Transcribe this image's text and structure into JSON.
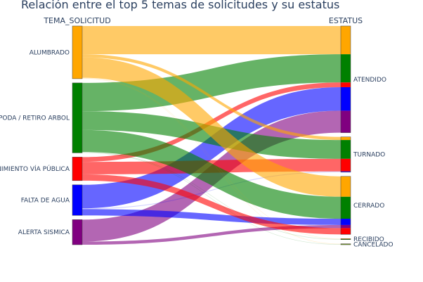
{
  "chart_data": {
    "type": "sankey",
    "title": "Relación entre el top 5 temas de solicitudes y su estatus",
    "left_column_title": "TEMA_SOLICITUD",
    "right_column_title": "ESTATUS",
    "source_nodes": [
      {
        "label": "ALUMBRADO",
        "color": "#ffa600"
      },
      {
        "label": "PODA / RETIRO ARBOL",
        "color": "#008000"
      },
      {
        "label": "MANTENIMIENTO VÍA PÚBLICA",
        "color": "#ff0000"
      },
      {
        "label": "FALTA DE AGUA",
        "color": "#0000ff"
      },
      {
        "label": "ALERTA SISMICA",
        "color": "#800080"
      }
    ],
    "target_nodes": [
      {
        "label": "ATENDIDO"
      },
      {
        "label": "TURNADO"
      },
      {
        "label": "CERRADO"
      },
      {
        "label": "RECIBIDO"
      },
      {
        "label": "CANCELADO"
      }
    ],
    "flows": [
      {
        "source": "ALUMBRADO",
        "target": "ATENDIDO",
        "value": 18
      },
      {
        "source": "PODA / RETIRO ARBOL",
        "target": "ATENDIDO",
        "value": 18
      },
      {
        "source": "MANTENIMIENTO VÍA PÚBLICA",
        "target": "ATENDIDO",
        "value": 3
      },
      {
        "source": "FALTA DE AGUA",
        "target": "ATENDIDO",
        "value": 15
      },
      {
        "source": "ALERTA SISMICA",
        "target": "ATENDIDO",
        "value": 14
      },
      {
        "source": "ALUMBRADO",
        "target": "TURNADO",
        "value": 2
      },
      {
        "source": "PODA / RETIRO ARBOL",
        "target": "TURNADO",
        "value": 12
      },
      {
        "source": "MANTENIMIENTO VÍA PÚBLICA",
        "target": "TURNADO",
        "value": 8
      },
      {
        "source": "FALTA DE AGUA",
        "target": "TURNADO",
        "value": 0.5
      },
      {
        "source": "ALUMBRADO",
        "target": "CERRADO",
        "value": 13
      },
      {
        "source": "PODA / RETIRO ARBOL",
        "target": "CERRADO",
        "value": 14
      },
      {
        "source": "FALTA DE AGUA",
        "target": "CERRADO",
        "value": 4
      },
      {
        "source": "ALERTA SISMICA",
        "target": "CERRADO",
        "value": 2
      },
      {
        "source": "MANTENIMIENTO VÍA PÚBLICA",
        "target": "CERRADO",
        "value": 4
      },
      {
        "source": "ALUMBRADO",
        "target": "RECIBIDO",
        "value": 0.3
      },
      {
        "source": "PODA / RETIRO ARBOL",
        "target": "RECIBIDO",
        "value": 0.3
      },
      {
        "source": "ALUMBRADO",
        "target": "CANCELADO",
        "value": 0.3
      },
      {
        "source": "PODA / RETIRO ARBOL",
        "target": "CANCELADO",
        "value": 0.3
      }
    ]
  }
}
